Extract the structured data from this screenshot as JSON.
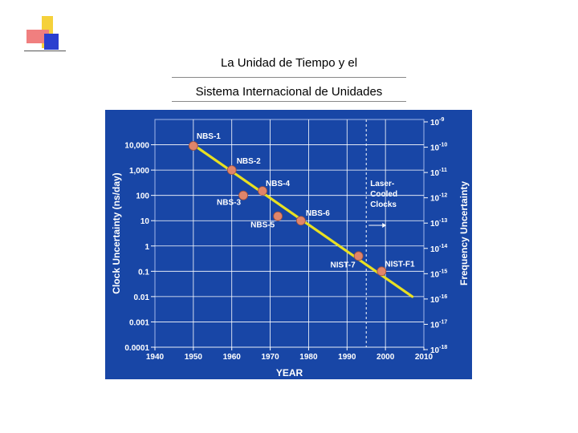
{
  "slide": {
    "title_line1": "La Unidad de Tiempo y el",
    "title_line2": "Sistema Internacional de Unidades"
  },
  "colors": {
    "panel_bg": "#1846A6",
    "trend_line": "#E8E022",
    "point_fill": "#E0856A",
    "text": "#FFFFFF"
  },
  "chart_data": {
    "type": "line",
    "title": "",
    "xlabel": "YEAR",
    "ylabel": "Clock Uncertainty  (ns/day)",
    "y2label": "Frequency Uncertainty",
    "xlim": [
      1940,
      2010
    ],
    "ylim": [
      0.0001,
      100000
    ],
    "y_scale": "log",
    "grid": true,
    "x_ticks": [
      "1940",
      "1950",
      "1960",
      "1970",
      "1980",
      "1990",
      "2000",
      "2010"
    ],
    "y_ticks": [
      "10,000",
      "1,000",
      "100",
      "10",
      "1",
      "0.1",
      "0.01",
      "0.001",
      "0.0001"
    ],
    "y2_ticks": [
      "10-9",
      "10-10",
      "10-11",
      "10-12",
      "10-13",
      "10-14",
      "10-15",
      "10-16",
      "10-17",
      "10-18"
    ],
    "trend": {
      "x": [
        1950,
        2007
      ],
      "y": [
        10000,
        0.01
      ]
    },
    "points": [
      {
        "label": "NBS-1",
        "x": 1950,
        "y": 9000
      },
      {
        "label": "NBS-2",
        "x": 1960,
        "y": 1000
      },
      {
        "label": "NBS-3",
        "x": 1963,
        "y": 100
      },
      {
        "label": "NBS-4",
        "x": 1968,
        "y": 150
      },
      {
        "label": "NBS-5",
        "x": 1972,
        "y": 15
      },
      {
        "label": "NBS-6",
        "x": 1978,
        "y": 10
      },
      {
        "label": "NIST-7",
        "x": 1993,
        "y": 0.4
      },
      {
        "label": "NIST-F1",
        "x": 1999,
        "y": 0.1
      }
    ],
    "annotation": {
      "x": 1995,
      "lines": [
        "Laser-",
        "Cooled",
        "Clocks"
      ]
    }
  }
}
